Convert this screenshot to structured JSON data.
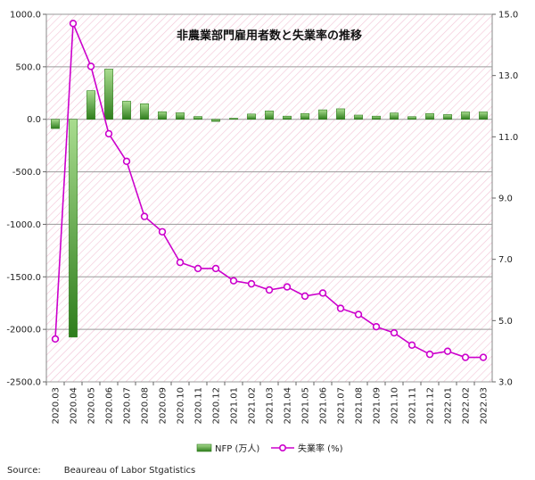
{
  "chart_data": {
    "type": "bar+line",
    "title": "非農業部門雇用者数と失業率の推移",
    "categories": [
      "2020.03",
      "2020.04",
      "2020.05",
      "2020.06",
      "2020.07",
      "2020.08",
      "2020.09",
      "2020.10",
      "2020.11",
      "2020.12",
      "2021.01",
      "2021.02",
      "2021.03",
      "2021.04",
      "2021.05",
      "2021.06",
      "2021.07",
      "2021.08",
      "2021.09",
      "2021.10",
      "2021.11",
      "2021.12",
      "2022.01",
      "2022.02",
      "2022.03"
    ],
    "series": [
      {
        "name": "NFP (万人)",
        "type": "bar",
        "axis": "left",
        "values": [
          -88,
          -2074,
          272,
          478,
          172,
          148,
          72,
          62,
          26,
          -20,
          10,
          50,
          80,
          30,
          55,
          90,
          100,
          40,
          30,
          60,
          25,
          55,
          45,
          70,
          70
        ]
      },
      {
        "name": "失業率 (%)",
        "type": "line",
        "axis": "right",
        "values": [
          4.4,
          14.7,
          13.3,
          11.1,
          10.2,
          8.4,
          7.9,
          6.9,
          6.7,
          6.7,
          6.3,
          6.2,
          6.0,
          6.1,
          5.8,
          5.9,
          5.4,
          5.2,
          4.8,
          4.6,
          4.2,
          3.9,
          4.0,
          3.8,
          3.8
        ]
      }
    ],
    "y_left": {
      "min": -2500,
      "max": 1000,
      "ticks": [
        "1000.0",
        "500.0",
        "0.0",
        "-500.0",
        "-1000.0",
        "-1500.0",
        "-2000.0",
        "-2500.0"
      ]
    },
    "y_right": {
      "min": 3,
      "max": 15,
      "ticks": [
        "15.0",
        "13.0",
        "11.0",
        "9.0",
        "7.0",
        "5.0",
        "3.0"
      ]
    },
    "grid": true,
    "legend_position": "bottom",
    "colors": {
      "bar_light": "#a9dc8f",
      "bar_dark": "#2e7d1c",
      "line": "#cc00cc",
      "marker_fill": "#ffffff",
      "plot_hatch": "#f3c3d6"
    }
  },
  "source": {
    "label": "Source:",
    "text": "Beaureau of Labor Stgatistics"
  }
}
